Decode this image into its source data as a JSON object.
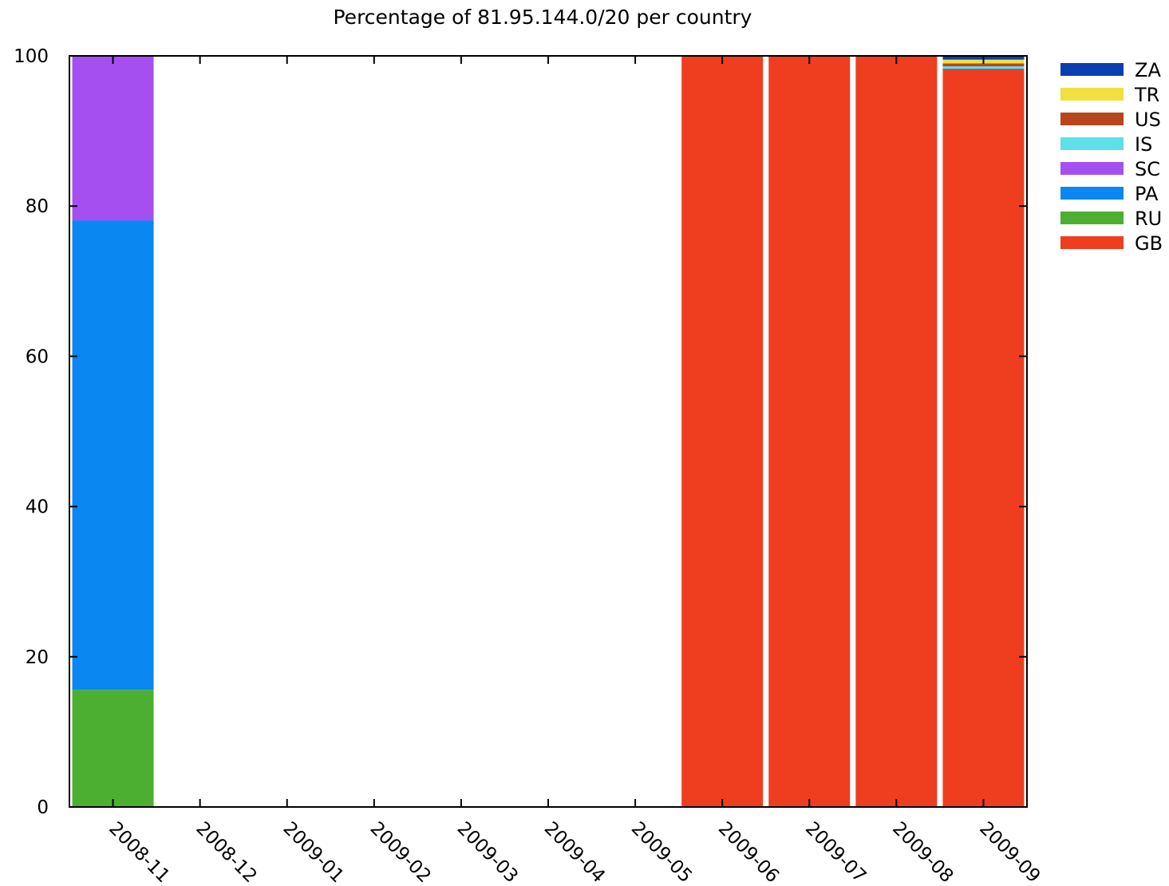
{
  "chart_data": {
    "type": "bar",
    "stacked": true,
    "title": "Percentage of 81.95.144.0/20 per country",
    "xlabel": "",
    "ylabel": "",
    "ylim": [
      0,
      100
    ],
    "yticks": [
      0,
      20,
      40,
      60,
      80,
      100
    ],
    "categories": [
      "2008-11",
      "2008-12",
      "2009-01",
      "2009-02",
      "2009-03",
      "2009-04",
      "2009-05",
      "2009-06",
      "2009-07",
      "2009-08",
      "2009-09"
    ],
    "grid": false,
    "legend_position": "right-top",
    "series": [
      {
        "name": "GB",
        "color": "#ee3e1f",
        "values": [
          0,
          0,
          0,
          0,
          0,
          0,
          0,
          100,
          100,
          100,
          98.2
        ]
      },
      {
        "name": "RU",
        "color": "#4caf32",
        "values": [
          15.6,
          0,
          0,
          0,
          0,
          0,
          0,
          0,
          0,
          0,
          0
        ]
      },
      {
        "name": "PA",
        "color": "#0a87f0",
        "values": [
          62.5,
          0,
          0,
          0,
          0,
          0,
          0,
          0,
          0,
          0,
          0.1
        ]
      },
      {
        "name": "SC",
        "color": "#a64ff0",
        "values": [
          21.9,
          0,
          0,
          0,
          0,
          0,
          0,
          0,
          0,
          0,
          0
        ]
      },
      {
        "name": "IS",
        "color": "#5fe0e8",
        "values": [
          0,
          0,
          0,
          0,
          0,
          0,
          0,
          0,
          0,
          0,
          0.3
        ]
      },
      {
        "name": "US",
        "color": "#b8461c",
        "values": [
          0,
          0,
          0,
          0,
          0,
          0,
          0,
          0,
          0,
          0,
          0.4
        ]
      },
      {
        "name": "TR",
        "color": "#f0e040",
        "values": [
          0,
          0,
          0,
          0,
          0,
          0,
          0,
          0,
          0,
          0,
          0.5
        ]
      },
      {
        "name": "ZA",
        "color": "#0a3fb0",
        "values": [
          0,
          0,
          0,
          0,
          0,
          0,
          0,
          0,
          0,
          0,
          0.5
        ]
      }
    ],
    "legend_order": [
      "ZA",
      "TR",
      "US",
      "IS",
      "SC",
      "PA",
      "RU",
      "GB"
    ]
  }
}
